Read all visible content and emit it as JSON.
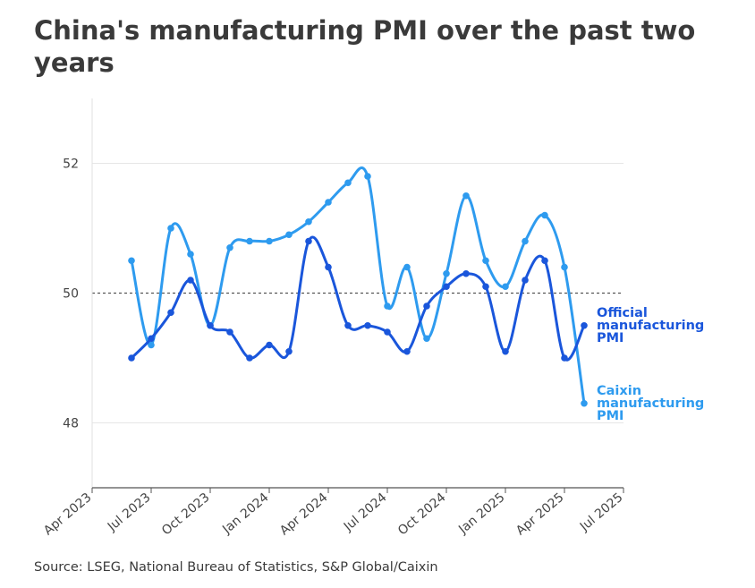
{
  "title": "China's manufacturing PMI over the past two years",
  "source": "Source: LSEG, National Bureau of Statistics, S&P Global/Caixin",
  "chart_data": {
    "type": "line",
    "title": "China's manufacturing PMI over the past two years",
    "xlabel": "",
    "ylabel": "",
    "ylim": [
      47,
      53
    ],
    "yticks": [
      48,
      50,
      52
    ],
    "reference_line": 50,
    "xtick_labels": [
      "Apr 2023",
      "Jul 2023",
      "Oct 2023",
      "Jan 2024",
      "Apr 2024",
      "Jul 2024",
      "Oct 2024",
      "Jan 2025",
      "Apr 2025",
      "Jul 2025"
    ],
    "x": [
      "Jun 2023",
      "Jul 2023",
      "Aug 2023",
      "Sep 2023",
      "Oct 2023",
      "Nov 2023",
      "Dec 2023",
      "Jan 2024",
      "Feb 2024",
      "Mar 2024",
      "Apr 2024",
      "May 2024",
      "Jun 2024",
      "Jul 2024",
      "Aug 2024",
      "Sep 2024",
      "Oct 2024",
      "Nov 2024",
      "Dec 2024",
      "Jan 2025",
      "Feb 2025",
      "Mar 2025",
      "Apr 2025",
      "May 2025"
    ],
    "series": [
      {
        "name": "Official manufacturing PMI",
        "label_lines": [
          "Official",
          "manufacturing",
          "PMI"
        ],
        "color": "#1a56db",
        "values": [
          49.0,
          49.3,
          49.7,
          50.2,
          49.5,
          49.4,
          49.0,
          49.2,
          49.1,
          50.8,
          50.4,
          49.5,
          49.5,
          49.4,
          49.1,
          49.8,
          50.1,
          50.3,
          50.1,
          49.1,
          50.2,
          50.5,
          49.0,
          49.5
        ]
      },
      {
        "name": "Caixin manufacturing PMI",
        "label_lines": [
          "Caixin",
          "manufacturing",
          "PMI"
        ],
        "color": "#2e9bef",
        "values": [
          50.5,
          49.2,
          51.0,
          50.6,
          49.5,
          50.7,
          50.8,
          50.8,
          50.9,
          51.1,
          51.4,
          51.7,
          51.8,
          49.8,
          50.4,
          49.3,
          50.3,
          51.5,
          50.5,
          50.1,
          50.8,
          51.2,
          50.4,
          48.3
        ]
      }
    ]
  }
}
